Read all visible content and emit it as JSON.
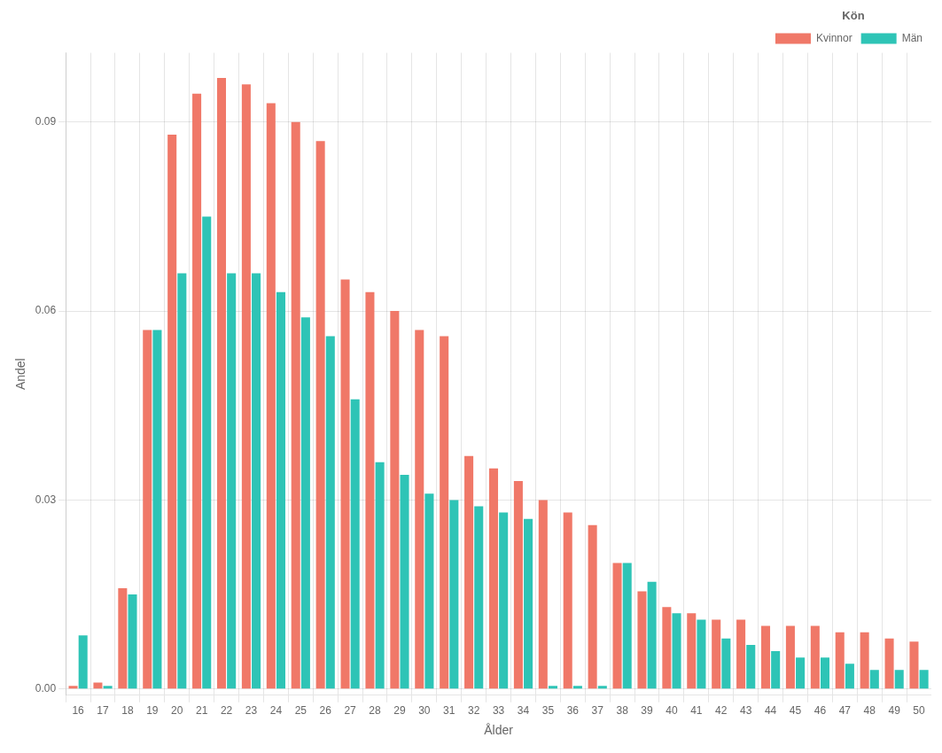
{
  "chart_data": {
    "type": "bar",
    "categories": [
      16,
      17,
      18,
      19,
      20,
      21,
      22,
      23,
      24,
      25,
      26,
      27,
      28,
      29,
      30,
      31,
      32,
      33,
      34,
      35,
      36,
      37,
      38,
      39,
      40,
      41,
      42,
      43,
      44,
      45,
      46,
      47,
      48,
      49,
      50
    ],
    "series": [
      {
        "name": "Kvinnor",
        "color": "#F07868",
        "values": [
          0.0005,
          0.001,
          0.016,
          0.057,
          0.088,
          0.0945,
          0.097,
          0.096,
          0.093,
          0.09,
          0.087,
          0.065,
          0.063,
          0.06,
          0.057,
          0.056,
          0.037,
          0.035,
          0.033,
          0.03,
          0.028,
          0.026,
          0.02,
          0.0155,
          0.013,
          0.012,
          0.011,
          0.011,
          0.01,
          0.01,
          0.01,
          0.009,
          0.009,
          0.008,
          0.0075
        ]
      },
      {
        "name": "Män",
        "color": "#2EC4B6",
        "values": [
          0.0085,
          0.0005,
          0.015,
          0.057,
          0.066,
          0.075,
          0.066,
          0.066,
          0.063,
          0.059,
          0.056,
          0.046,
          0.036,
          0.034,
          0.031,
          0.03,
          0.029,
          0.028,
          0.027,
          0.0005,
          0.0005,
          0.0005,
          0.02,
          0.017,
          0.012,
          0.011,
          0.008,
          0.007,
          0.006,
          0.005,
          0.005,
          0.004,
          0.003,
          0.003,
          0.003
        ]
      }
    ],
    "xlabel": "Ålder",
    "ylabel": "Andel",
    "legend_title": "Kön",
    "ylim": [
      -0.001,
      0.101
    ],
    "yticks": [
      {
        "value": 0,
        "label": "0.00"
      },
      0.03,
      0.06,
      0.09
    ],
    "grid": true,
    "legend": "upper right"
  }
}
